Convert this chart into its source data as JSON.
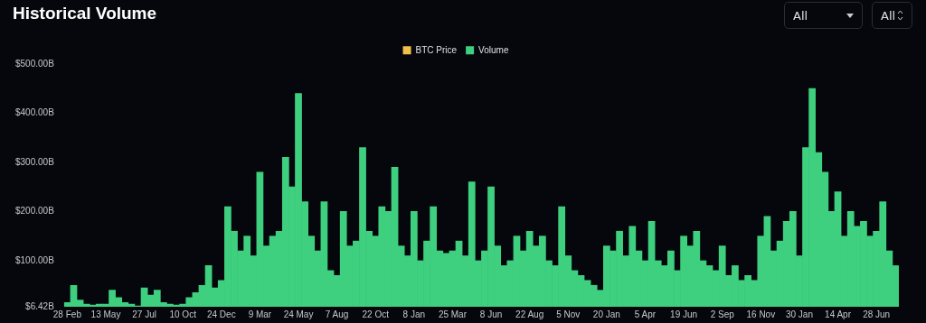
{
  "chart_data": {
    "type": "bar",
    "title": "Historical Volume",
    "annotations": [
      "All",
      "All"
    ],
    "categories": [
      "28 Feb",
      null,
      null,
      null,
      null,
      null,
      "13 May",
      null,
      null,
      null,
      null,
      null,
      "27 Jul",
      null,
      null,
      null,
      null,
      null,
      "10 Oct",
      null,
      null,
      null,
      null,
      null,
      "24 Dec",
      null,
      null,
      null,
      null,
      null,
      "9 Mar",
      null,
      null,
      null,
      null,
      null,
      "24 May",
      null,
      null,
      null,
      null,
      null,
      "7 Aug",
      null,
      null,
      null,
      null,
      null,
      "22 Oct",
      null,
      null,
      null,
      null,
      null,
      "8 Jan",
      null,
      null,
      null,
      null,
      null,
      "25 Mar",
      null,
      null,
      null,
      null,
      null,
      "8 Jun",
      null,
      null,
      null,
      null,
      null,
      "22 Aug",
      null,
      null,
      null,
      null,
      null,
      "5 Nov",
      null,
      null,
      null,
      null,
      null,
      "20 Jan",
      null,
      null,
      null,
      null,
      null,
      "5 Apr",
      null,
      null,
      null,
      null,
      null,
      "19 Jun",
      null,
      null,
      null,
      null,
      null,
      "2 Sep",
      null,
      null,
      null,
      null,
      null,
      "16 Nov",
      null,
      null,
      null,
      null,
      null,
      "30 Jan",
      null,
      null,
      null,
      null,
      null,
      "14 Apr",
      null,
      null,
      null,
      null,
      null,
      "28 Jun",
      null,
      null,
      null
    ],
    "series": [
      {
        "name": "BTC Price",
        "type": "line",
        "color": "#f0c04a",
        "values": [
          null,
          null,
          null,
          null,
          null,
          null,
          null,
          null,
          null,
          null,
          null,
          null,
          null,
          null,
          null,
          null,
          null,
          null,
          null,
          null,
          null,
          null,
          null,
          null,
          null,
          null,
          null,
          null,
          null,
          null,
          null,
          null,
          null,
          null,
          null,
          null,
          null,
          null,
          null,
          null,
          null,
          null,
          null,
          null,
          null,
          null,
          null,
          null,
          null,
          null,
          null,
          null,
          null,
          null,
          null,
          null,
          null,
          null,
          null,
          null,
          null,
          null,
          null,
          null,
          null,
          null,
          null,
          null,
          null,
          null,
          null,
          null,
          null,
          null,
          null,
          null,
          null,
          null,
          null,
          null,
          null,
          null,
          null,
          null,
          null,
          null,
          null,
          null,
          null,
          null,
          null,
          null,
          null,
          null,
          null,
          null,
          null,
          null,
          null,
          null,
          null,
          null,
          null,
          null,
          null,
          null,
          null,
          null,
          null,
          null,
          null,
          null,
          null,
          null,
          null,
          null,
          null,
          null,
          null,
          null,
          null,
          null,
          null,
          null,
          null,
          null,
          null,
          null,
          null,
          null
        ]
      },
      {
        "name": "Volume",
        "color": "#3ecf7f",
        "values": [
          15,
          50,
          20,
          12,
          10,
          12,
          12,
          40,
          25,
          15,
          12,
          8,
          45,
          30,
          40,
          15,
          12,
          10,
          12,
          25,
          35,
          50,
          90,
          45,
          60,
          210,
          160,
          120,
          150,
          110,
          280,
          130,
          150,
          160,
          310,
          250,
          440,
          220,
          150,
          120,
          220,
          80,
          70,
          200,
          130,
          140,
          330,
          160,
          150,
          210,
          200,
          290,
          130,
          110,
          200,
          100,
          140,
          210,
          120,
          115,
          120,
          140,
          110,
          260,
          100,
          120,
          250,
          130,
          90,
          100,
          150,
          120,
          160,
          130,
          150,
          100,
          90,
          210,
          110,
          80,
          70,
          60,
          50,
          40,
          130,
          120,
          160,
          110,
          170,
          120,
          100,
          180,
          100,
          90,
          120,
          80,
          150,
          130,
          160,
          100,
          90,
          80,
          130,
          70,
          90,
          60,
          70,
          60,
          150,
          190,
          120,
          140,
          180,
          200,
          110,
          330,
          450,
          320,
          280,
          200,
          240,
          150,
          200,
          170,
          180,
          150,
          160,
          220,
          120,
          90
        ]
      }
    ],
    "ylim": [
      6.42,
      500
    ],
    "yticks": [
      {
        "value": 6.42,
        "label": "$6.42B"
      },
      {
        "value": 100,
        "label": "$100.00B"
      },
      {
        "value": 200,
        "label": "$200.00B"
      },
      {
        "value": 300,
        "label": "$300.00B"
      },
      {
        "value": 400,
        "label": "$400.00B"
      },
      {
        "value": 500,
        "label": "$500.00B"
      }
    ],
    "legend": "top"
  }
}
